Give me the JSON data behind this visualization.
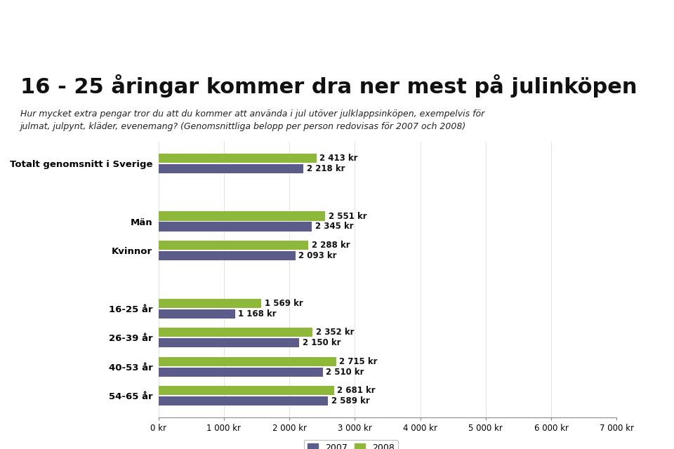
{
  "title": "16 - 25 åringar kommer dra ner mest på julinköpen",
  "subtitle_line1": "Hur mycket extra pengar tror du att du kommer att använda i jul utöver julklappsinköpen, exempelvis för",
  "subtitle_line2": "julmat, julpynt, kläder, evenemang? (Genomsnittliga belopp per person redovisas för 2007 och 2008)",
  "header_bg": "#1a3a6b",
  "categories": [
    "Totalt genomsnitt i Sverige",
    "",
    "Män",
    "Kvinnor",
    "",
    "16-25 år",
    "26-39 år",
    "40-53 år",
    "54-65 år"
  ],
  "values_2007": [
    2218,
    null,
    2345,
    2093,
    null,
    1168,
    2150,
    2510,
    2589
  ],
  "values_2008": [
    2413,
    null,
    2551,
    2288,
    null,
    1569,
    2352,
    2715,
    2681
  ],
  "labels_2007": [
    "2 218 kr",
    "",
    "2 345 kr",
    "2 093 kr",
    "",
    "1 168 kr",
    "2 150 kr",
    "2 510 kr",
    "2 589 kr"
  ],
  "labels_2008": [
    "2 413 kr",
    "",
    "2 551 kr",
    "2 288 kr",
    "",
    "1 569 kr",
    "2 352 kr",
    "2 715 kr",
    "2 681 kr"
  ],
  "color_2007": "#5c5c8a",
  "color_2008": "#8db83a",
  "xlim": [
    0,
    7000
  ],
  "xticks": [
    0,
    1000,
    2000,
    3000,
    4000,
    5000,
    6000,
    7000
  ],
  "xtick_labels": [
    "0 kr",
    "1 000 kr",
    "2 000 kr",
    "3 000 kr",
    "4 000 kr",
    "5 000 kr",
    "6 000 kr",
    "7 000 kr"
  ],
  "legend_2007": "2007",
  "legend_2008": "2008",
  "bg_color": "#ffffff",
  "plot_bg": "#ffffff",
  "bar_height": 0.32,
  "font_size_title": 22,
  "font_size_subtitle": 9,
  "font_size_bar_label": 8.5,
  "font_size_ytick": 9.5,
  "font_size_xtick": 8.5
}
